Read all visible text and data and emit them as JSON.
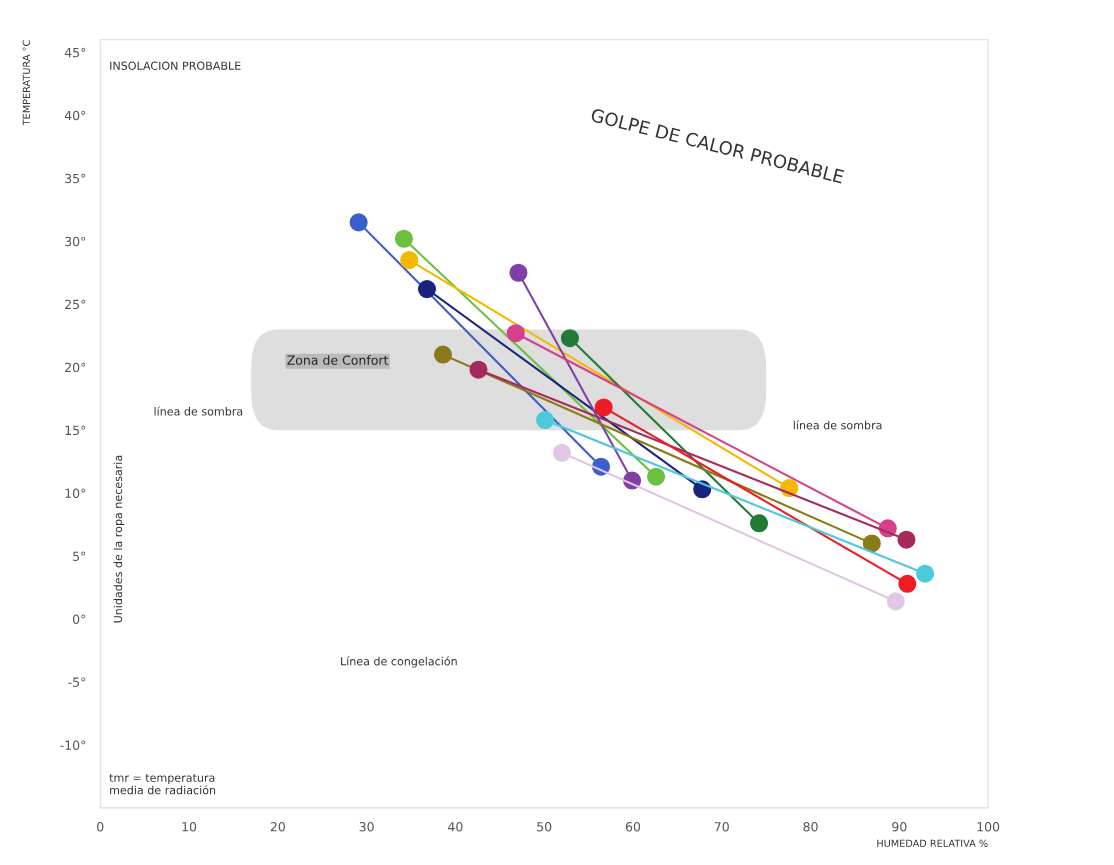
{
  "chart_data": {
    "type": "line",
    "xlabel": "HUMEDAD RELATIVA %",
    "ylabel": "TEMPERATURA °C",
    "xlim": [
      0,
      100
    ],
    "ylim": [
      -15,
      46
    ],
    "xticks": [
      0,
      10,
      20,
      30,
      40,
      50,
      60,
      70,
      80,
      90,
      100
    ],
    "yticks": [
      {
        "value": 45,
        "label": "45°"
      },
      {
        "value": 40,
        "label": "40°"
      },
      {
        "value": 35,
        "label": "35°"
      },
      {
        "value": 30,
        "label": "30°"
      },
      {
        "value": 25,
        "label": "25°"
      },
      {
        "value": 20,
        "label": "20°"
      },
      {
        "value": 15,
        "label": "15°"
      },
      {
        "value": 10,
        "label": "10°"
      },
      {
        "value": 5,
        "label": "5°"
      },
      {
        "value": 0,
        "label": "0°"
      },
      {
        "value": -5,
        "label": "-5°"
      },
      {
        "value": -10,
        "label": "-10°"
      }
    ],
    "grid": false,
    "marker": "circle",
    "line_style": "solid",
    "bands": [
      {
        "axis": "y",
        "from": 15,
        "to": 23,
        "label": "Zona de Confort",
        "color": "#c8c8c8"
      }
    ],
    "series": [
      {
        "color": "#3a5fcd",
        "x": [
          29.1,
          56.4
        ],
        "values": [
          31.5,
          12.1
        ]
      },
      {
        "color": "#6cc040",
        "x": [
          34.2,
          62.6
        ],
        "values": [
          30.2,
          11.3
        ]
      },
      {
        "color": "#f5b800",
        "x": [
          34.8,
          77.6
        ],
        "values": [
          28.5,
          10.4
        ]
      },
      {
        "color": "#1a237e",
        "x": [
          36.8,
          67.8
        ],
        "values": [
          26.2,
          10.3
        ]
      },
      {
        "color": "#7e3fa8",
        "x": [
          47.1,
          59.9
        ],
        "values": [
          27.5,
          11.0
        ]
      },
      {
        "color": "#217a35",
        "x": [
          52.9,
          74.2
        ],
        "values": [
          22.3,
          7.6
        ]
      },
      {
        "color": "#d6408a",
        "x": [
          46.8,
          88.7
        ],
        "values": [
          22.7,
          7.2
        ]
      },
      {
        "color": "#8a7a18",
        "x": [
          38.6,
          86.9
        ],
        "values": [
          21.0,
          6.0
        ]
      },
      {
        "color": "#a62a5c",
        "x": [
          42.6,
          90.8
        ],
        "values": [
          19.8,
          6.3
        ]
      },
      {
        "color": "#ee1c24",
        "x": [
          56.7,
          90.9
        ],
        "values": [
          16.8,
          2.8
        ]
      },
      {
        "color": "#4ec9dc",
        "x": [
          50.1,
          92.9
        ],
        "values": [
          15.8,
          3.6
        ]
      },
      {
        "color": "#e2c6e6",
        "x": [
          52.0,
          89.6
        ],
        "values": [
          13.2,
          1.4
        ]
      }
    ],
    "annotations": [
      "INSOLACION PROBABLE",
      "GOLPE DE CALOR PROBABLE",
      "línea de sombra",
      "línea de sombra",
      "Línea de congelación",
      "Unidades de la ropa necesaria",
      "tmr = temperatura\nmedia de radiación"
    ]
  }
}
